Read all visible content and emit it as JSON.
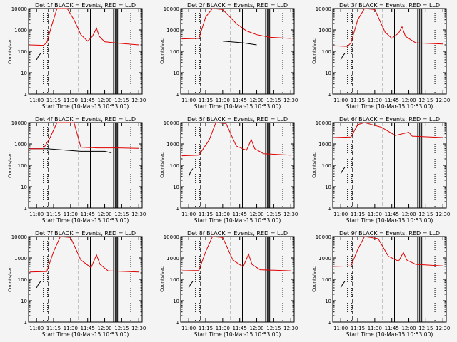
{
  "figure": {
    "x_tick_labels": [
      "11:00",
      "11:15",
      "11:30",
      "11:45",
      "12:00",
      "12:15",
      "12:30"
    ],
    "x_tick_hours": [
      11.0,
      11.25,
      11.5,
      11.75,
      12.0,
      12.25,
      12.5
    ],
    "xlabel": "Start Time (10-Mar-15 10:53:00)",
    "ylabel": "Counts/sec",
    "y_tick_labels": [
      "1",
      "10",
      "100",
      "1000",
      "10000"
    ],
    "y_tick_values": [
      1,
      10,
      100,
      1000,
      10000
    ],
    "xlim_hours": [
      10.883,
      12.55
    ],
    "ylim": [
      1,
      10000
    ],
    "colors": {
      "events": "#000000",
      "lld": "#e00000",
      "axes": "#000000",
      "background": "#f4f4f4"
    }
  },
  "chart_data": [
    {
      "type": "line",
      "title": "Det 1f BLACK = Events, RED = LLD",
      "series": [
        {
          "name": "Events",
          "color": "#000000",
          "values": [
            [
              11.0,
              40
            ],
            [
              11.03,
              60
            ],
            [
              11.06,
              80
            ]
          ]
        },
        {
          "name": "LLD",
          "color": "#e00000",
          "values": [
            [
              10.9,
              200
            ],
            [
              11.1,
              190
            ],
            [
              11.15,
              250
            ],
            [
              11.22,
              1500
            ],
            [
              11.3,
              10000
            ],
            [
              11.45,
              10000
            ],
            [
              11.55,
              3000
            ],
            [
              11.65,
              600
            ],
            [
              11.75,
              300
            ],
            [
              11.82,
              500
            ],
            [
              11.88,
              1200
            ],
            [
              11.92,
              500
            ],
            [
              12.0,
              280
            ],
            [
              12.2,
              240
            ],
            [
              12.5,
              200
            ]
          ]
        }
      ]
    },
    {
      "type": "line",
      "title": "Det 2f BLACK = Events, RED = LLD",
      "series": [
        {
          "name": "Events",
          "color": "#000000",
          "values": [
            [
              11.5,
              300
            ],
            [
              11.8,
              250
            ],
            [
              12.0,
              200
            ]
          ]
        },
        {
          "name": "LLD",
          "color": "#e00000",
          "values": [
            [
              10.9,
              380
            ],
            [
              11.15,
              400
            ],
            [
              11.25,
              4000
            ],
            [
              11.35,
              10000
            ],
            [
              11.5,
              9000
            ],
            [
              11.7,
              2000
            ],
            [
              11.85,
              900
            ],
            [
              12.0,
              600
            ],
            [
              12.2,
              450
            ],
            [
              12.5,
              400
            ]
          ]
        }
      ]
    },
    {
      "type": "line",
      "title": "Det 3f BLACK = Events, RED = LLD",
      "series": [
        {
          "name": "Events",
          "color": "#000000",
          "values": [
            [
              11.0,
              40
            ],
            [
              11.03,
              60
            ],
            [
              11.06,
              80
            ]
          ]
        },
        {
          "name": "LLD",
          "color": "#e00000",
          "values": [
            [
              10.9,
              180
            ],
            [
              11.1,
              170
            ],
            [
              11.15,
              250
            ],
            [
              11.25,
              3000
            ],
            [
              11.35,
              10000
            ],
            [
              11.5,
              9000
            ],
            [
              11.65,
              800
            ],
            [
              11.75,
              400
            ],
            [
              11.85,
              700
            ],
            [
              11.9,
              1400
            ],
            [
              11.95,
              500
            ],
            [
              12.1,
              250
            ],
            [
              12.5,
              220
            ]
          ]
        }
      ]
    },
    {
      "type": "line",
      "title": "Det 4f BLACK = Events, RED = LLD",
      "series": [
        {
          "name": "Events",
          "color": "#000000",
          "values": [
            [
              10.9,
              600
            ],
            [
              11.15,
              600
            ],
            [
              11.65,
              450
            ],
            [
              12.0,
              450
            ],
            [
              12.1,
              380
            ]
          ]
        },
        {
          "name": "LLD",
          "color": "#e00000",
          "values": [
            [
              10.9,
              600
            ],
            [
              11.1,
              600
            ],
            [
              11.2,
              2000
            ],
            [
              11.3,
              10000
            ],
            [
              11.55,
              10000
            ],
            [
              11.65,
              700
            ],
            [
              11.9,
              650
            ],
            [
              12.2,
              650
            ],
            [
              12.5,
              620
            ]
          ]
        }
      ]
    },
    {
      "type": "line",
      "title": "Det 5f BLACK = Events, RED = LLD",
      "series": [
        {
          "name": "Events",
          "color": "#000000",
          "values": [
            [
              11.0,
              30
            ],
            [
              11.03,
              50
            ],
            [
              11.06,
              70
            ]
          ]
        },
        {
          "name": "LLD",
          "color": "#e00000",
          "values": [
            [
              10.9,
              280
            ],
            [
              11.15,
              300
            ],
            [
              11.3,
              1500
            ],
            [
              11.4,
              10000
            ],
            [
              11.55,
              9000
            ],
            [
              11.7,
              800
            ],
            [
              11.85,
              500
            ],
            [
              11.92,
              1600
            ],
            [
              11.97,
              600
            ],
            [
              12.1,
              350
            ],
            [
              12.5,
              300
            ]
          ]
        }
      ]
    },
    {
      "type": "line",
      "title": "Det 6f BLACK = Events, RED = LLD",
      "series": [
        {
          "name": "Events",
          "color": "#000000",
          "values": [
            [
              11.0,
              40
            ],
            [
              11.03,
              60
            ],
            [
              11.06,
              80
            ]
          ]
        },
        {
          "name": "LLD",
          "color": "#e00000",
          "values": [
            [
              10.9,
              2000
            ],
            [
              11.15,
              2100
            ],
            [
              11.25,
              8000
            ],
            [
              11.35,
              10000
            ],
            [
              11.6,
              6000
            ],
            [
              11.8,
              2500
            ],
            [
              12.0,
              3500
            ],
            [
              12.05,
              2300
            ],
            [
              12.5,
              2000
            ]
          ]
        }
      ]
    },
    {
      "type": "line",
      "title": "Det 7f BLACK = Events, RED = LLD",
      "series": [
        {
          "name": "Events",
          "color": "#000000",
          "values": [
            [
              11.0,
              40
            ],
            [
              11.03,
              60
            ],
            [
              11.06,
              80
            ]
          ]
        },
        {
          "name": "LLD",
          "color": "#e00000",
          "values": [
            [
              10.9,
              220
            ],
            [
              11.15,
              230
            ],
            [
              11.25,
              2000
            ],
            [
              11.35,
              10000
            ],
            [
              11.5,
              9000
            ],
            [
              11.65,
              800
            ],
            [
              11.8,
              350
            ],
            [
              11.88,
              1400
            ],
            [
              11.93,
              500
            ],
            [
              12.05,
              250
            ],
            [
              12.5,
              220
            ]
          ]
        }
      ]
    },
    {
      "type": "line",
      "title": "Det 8f BLACK = Events, RED = LLD",
      "series": [
        {
          "name": "Events",
          "color": "#000000",
          "values": [
            [
              11.0,
              40
            ],
            [
              11.03,
              60
            ],
            [
              11.06,
              80
            ]
          ]
        },
        {
          "name": "LLD",
          "color": "#e00000",
          "values": [
            [
              10.9,
              250
            ],
            [
              11.15,
              260
            ],
            [
              11.25,
              2000
            ],
            [
              11.35,
              10000
            ],
            [
              11.5,
              9000
            ],
            [
              11.65,
              800
            ],
            [
              11.8,
              380
            ],
            [
              11.88,
              1500
            ],
            [
              11.93,
              500
            ],
            [
              12.05,
              280
            ],
            [
              12.5,
              250
            ]
          ]
        }
      ]
    },
    {
      "type": "line",
      "title": "Det 9f BLACK = Events, RED = LLD",
      "series": [
        {
          "name": "Events",
          "color": "#000000",
          "values": [
            [
              11.0,
              40
            ],
            [
              11.03,
              60
            ],
            [
              11.06,
              80
            ]
          ]
        },
        {
          "name": "LLD",
          "color": "#e00000",
          "values": [
            [
              10.9,
              400
            ],
            [
              11.15,
              420
            ],
            [
              11.25,
              2500
            ],
            [
              11.35,
              10000
            ],
            [
              11.55,
              8000
            ],
            [
              11.7,
              1200
            ],
            [
              11.85,
              700
            ],
            [
              11.92,
              1800
            ],
            [
              11.97,
              800
            ],
            [
              12.1,
              500
            ],
            [
              12.5,
              420
            ]
          ]
        }
      ]
    }
  ]
}
